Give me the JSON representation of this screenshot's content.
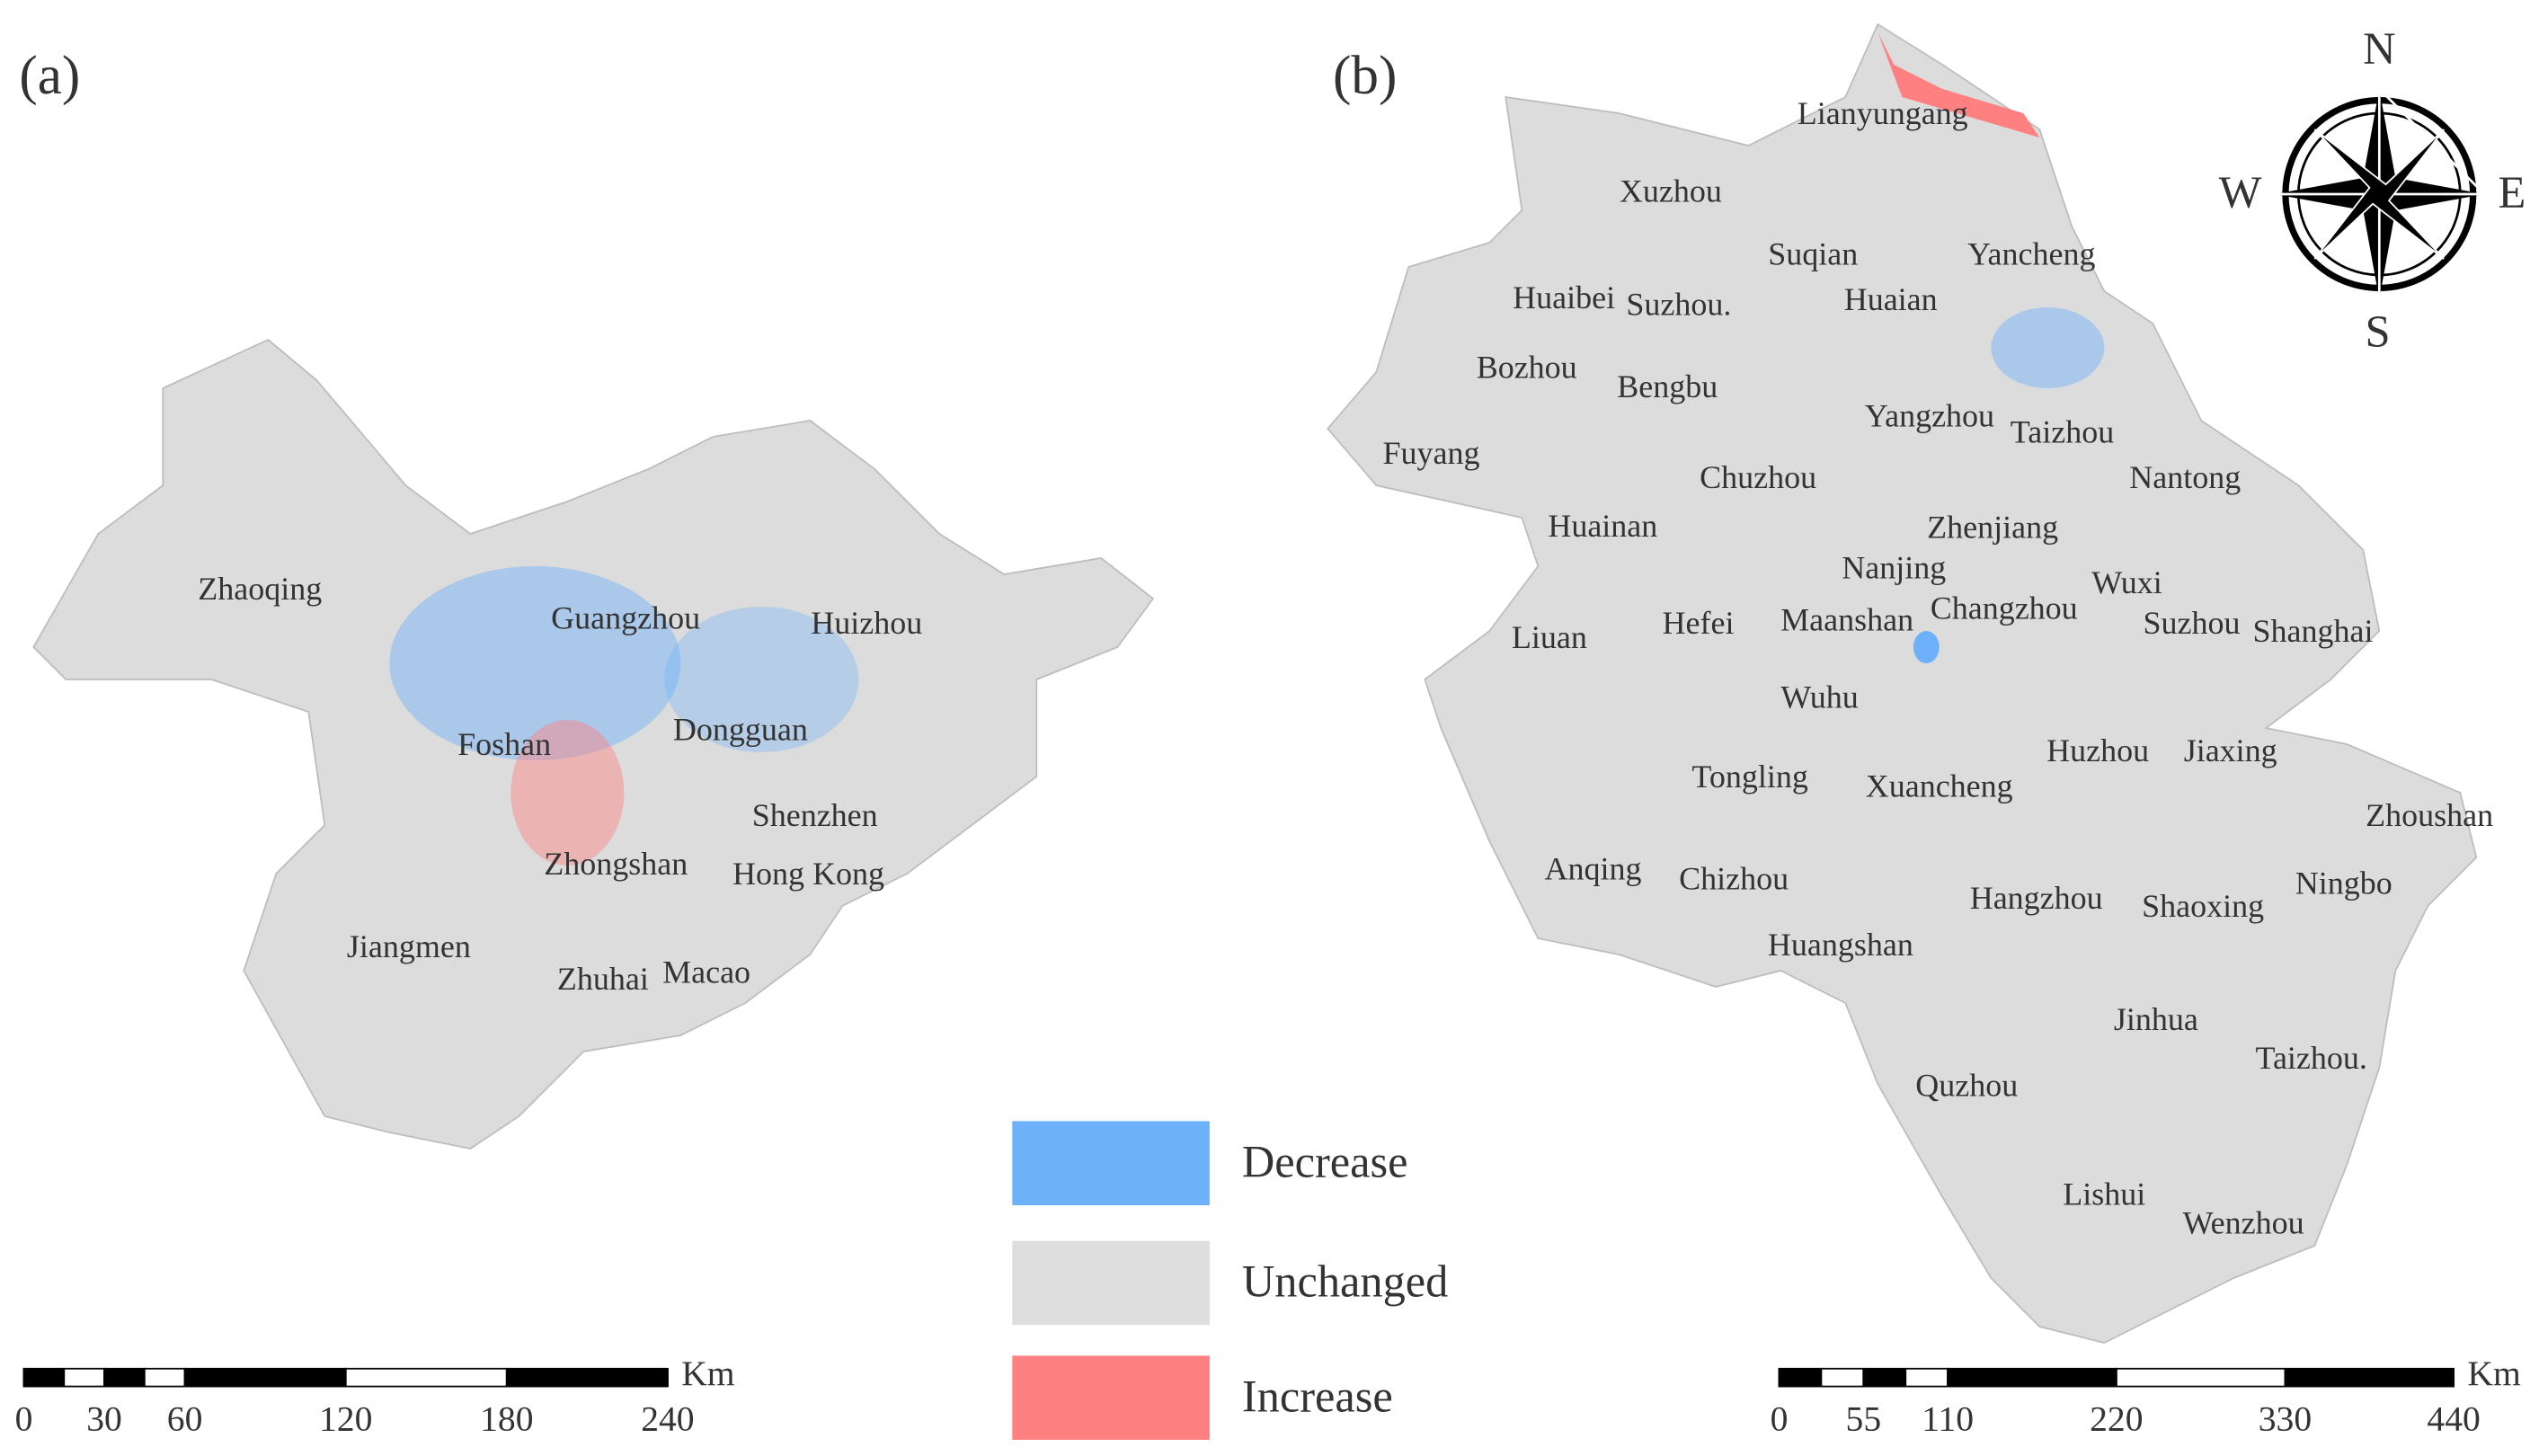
{
  "panel_a": {
    "label": "(a)",
    "cities": [
      "Zhaoqing",
      "Guangzhou",
      "Huizhou",
      "Foshan",
      "Dongguan",
      "Shenzhen",
      "Zhongshan",
      "Hong Kong",
      "Jiangmen",
      "Zhuhai",
      "Macao"
    ],
    "scale_bar": {
      "ticks": [
        0,
        30,
        60,
        120,
        180,
        240
      ],
      "unit": "Km"
    }
  },
  "panel_b": {
    "label": "(b)",
    "cities": [
      "Lianyungang",
      "Xuzhou",
      "Suqian",
      "Yancheng",
      "Huaibei",
      "Suzhou.",
      "Huaian",
      "Bozhou",
      "Bengbu",
      "Yangzhou",
      "Taizhou",
      "Fuyang",
      "Chuzhou",
      "Nantong",
      "Huainan",
      "Zhenjiang",
      "Nanjing",
      "Wuxi",
      "Changzhou",
      "Maanshan",
      "Hefei",
      "Suzhou",
      "Shanghai",
      "Liuan",
      "Wuhu",
      "Huzhou",
      "Jiaxing",
      "Tongling",
      "Xuancheng",
      "Zhoushan",
      "Anqing",
      "Chizhou",
      "Ningbo",
      "Hangzhou",
      "Shaoxing",
      "Huangshan",
      "Jinhua",
      "Quzhou",
      "Taizhou.",
      "Lishui",
      "Wenzhou"
    ],
    "scale_bar": {
      "ticks": [
        0,
        55,
        110,
        220,
        330,
        440
      ],
      "unit": "Km"
    }
  },
  "legend": [
    {
      "label": "Decrease",
      "color": "#6db1fa"
    },
    {
      "label": "Unchanged",
      "color": "#dedede"
    },
    {
      "label": "Increase",
      "color": "#ff8080"
    }
  ],
  "compass": {
    "north": "N",
    "east": "E",
    "south": "S",
    "west": "W"
  }
}
